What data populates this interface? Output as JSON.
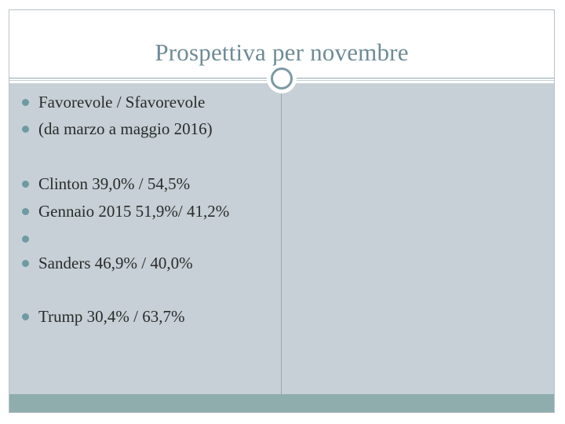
{
  "slide": {
    "title": "Prospettiva per novembre",
    "bullets": [
      {
        "text": "Favorevole / Sfavorevole"
      },
      {
        "text": "(da marzo a maggio 2016)"
      },
      {
        "text": "Clinton 39,0% / 54,5%"
      },
      {
        "text": "Gennaio 2015 51,9%/ 41,2%"
      },
      {
        "text": ""
      },
      {
        "text": "Sanders 46,9% / 40,0%"
      },
      {
        "text": "Trump 30,4% / 63,7%"
      }
    ]
  },
  "colors": {
    "title": "#6e8b96",
    "panel": "#c6d0d6",
    "footer": "#8fadad",
    "bullet": "#6f9aa3"
  }
}
